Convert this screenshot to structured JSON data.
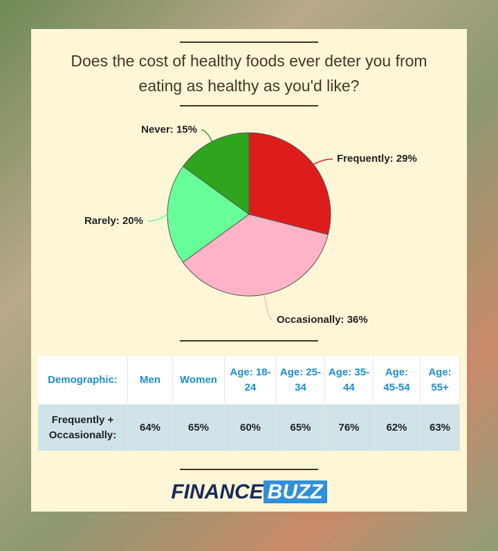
{
  "chart_data": {
    "type": "pie",
    "title": "Does the cost of healthy foods ever deter you from eating as healthy as you'd like?",
    "labels": [
      "Frequently: 29%",
      "Occasionally: 36%",
      "Rarely: 20%",
      "Never: 15%"
    ],
    "values": [
      29,
      36,
      20,
      15
    ],
    "colors": [
      "#dd1c1c",
      "#ffb3c6",
      "#66ff99",
      "#2ea51c"
    ]
  },
  "table": {
    "header": [
      "Demographic:",
      "Men",
      "Women",
      "Age: 18-24",
      "Age: 25-34",
      "Age: 35-44",
      "Age: 45-54",
      "Age: 55+"
    ],
    "rows": [
      [
        "Frequently + Occasionally:",
        "64%",
        "65%",
        "60%",
        "65%",
        "76%",
        "62%",
        "63%"
      ]
    ]
  },
  "logo": [
    "FINANCE",
    "BUZZ"
  ]
}
